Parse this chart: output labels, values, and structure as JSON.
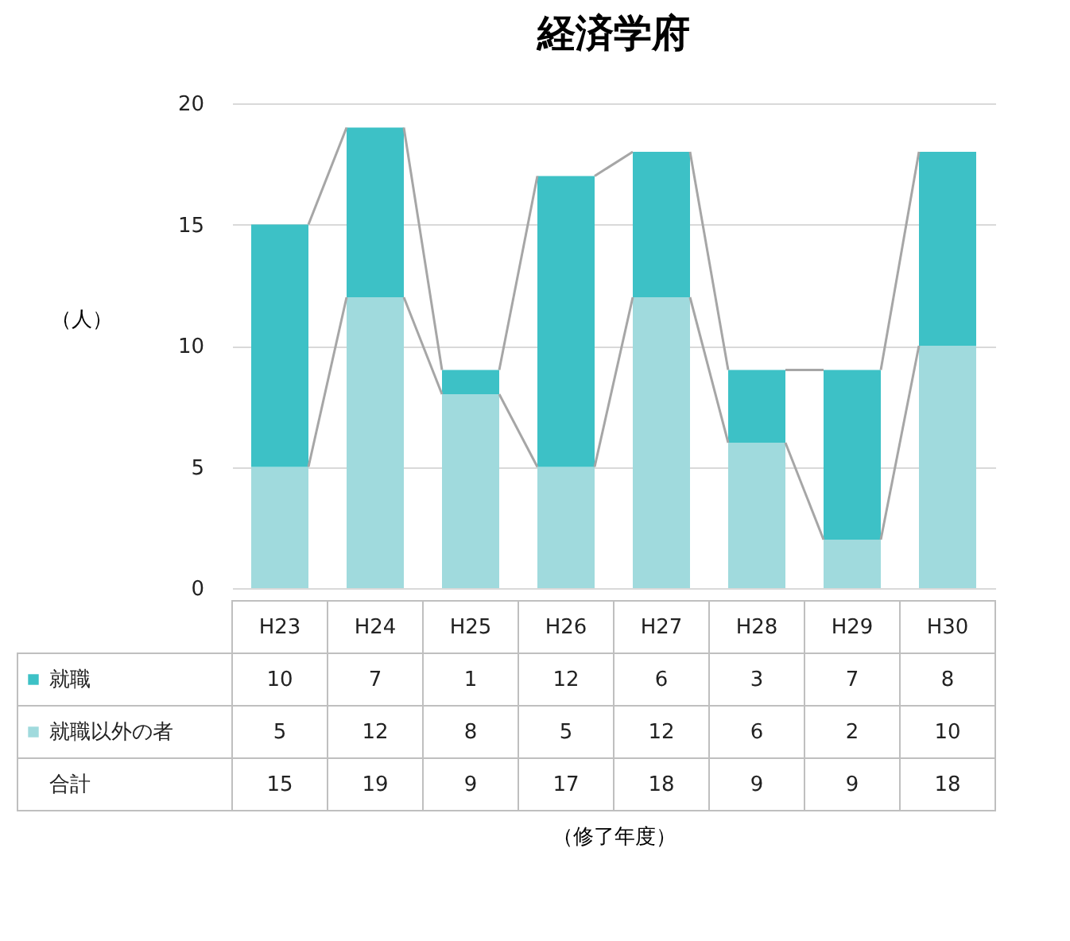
{
  "chart_data": {
    "type": "bar",
    "title": "経済学府",
    "ylabel": "（人）",
    "categories": [
      "H23",
      "H24",
      "H25",
      "H26",
      "H27",
      "H28",
      "H29",
      "H30"
    ],
    "stacked": true,
    "series": [
      {
        "name": "就職以外の者",
        "color": "#a0dadd",
        "values": [
          5,
          12,
          8,
          5,
          12,
          6,
          2,
          10
        ]
      },
      {
        "name": "就職",
        "color": "#3dc1c6",
        "values": [
          10,
          7,
          1,
          12,
          6,
          3,
          7,
          8
        ]
      }
    ],
    "annotations": [
      "合計",
      "（修了年度）",
      "15",
      "19",
      "9",
      "17",
      "18",
      "9",
      "9",
      "18"
    ],
    "legend": "bottom left",
    "data_labels": true,
    "ylim": [
      0,
      20
    ],
    "yticks": [
      0,
      5,
      10,
      15,
      20
    ],
    "grid": "y"
  }
}
